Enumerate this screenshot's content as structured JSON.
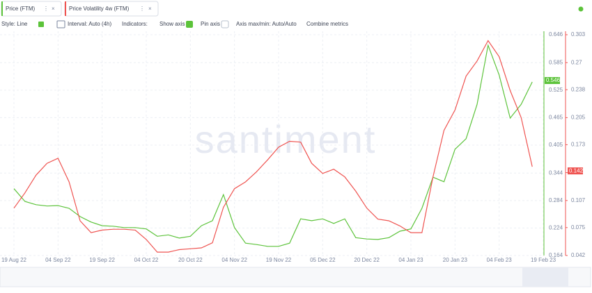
{
  "ui": {
    "tabs": [
      "Price (FTM)",
      "Price Volatility 4w (FTM)"
    ],
    "toolbar": {
      "style": "Style: Line",
      "interval": "Interval: Auto (4h)",
      "indicators": "Indicators:",
      "show_axis": "Show axis",
      "pin_axis": "Pin axis",
      "axis_minmax": "Axis max/min: Auto/Auto",
      "combine": "Combine metrics"
    },
    "watermark": "santiment"
  },
  "chart_data": {
    "type": "line",
    "categories": [
      "19 Aug 22",
      null,
      null,
      null,
      "04 Sep 22",
      null,
      null,
      null,
      "19 Sep 22",
      null,
      null,
      null,
      "04 Oct 22",
      null,
      null,
      null,
      "20 Oct 22",
      null,
      null,
      null,
      "04 Nov 22",
      null,
      null,
      null,
      "19 Nov 22",
      null,
      null,
      null,
      "05 Dec 22",
      null,
      null,
      null,
      "20 Dec 22",
      null,
      null,
      null,
      "04 Jan 23",
      null,
      null,
      null,
      "20 Jan 23",
      null,
      null,
      null,
      "04 Feb 23",
      null,
      null,
      null,
      "19 Feb 23"
    ],
    "series": [
      {
        "name": "Price (FTM)",
        "color": "#5cc33a",
        "axis": "y",
        "last_value": 0.546,
        "values": [
          0.31,
          0.282,
          0.275,
          0.272,
          0.273,
          0.267,
          0.249,
          0.237,
          0.229,
          0.228,
          0.225,
          0.225,
          0.222,
          0.206,
          0.209,
          0.202,
          0.206,
          0.229,
          0.24,
          0.297,
          0.225,
          0.191,
          0.188,
          0.184,
          0.184,
          0.191,
          0.244,
          0.24,
          0.244,
          0.234,
          0.244,
          0.203,
          0.2,
          0.199,
          0.203,
          0.217,
          0.222,
          0.267,
          0.335,
          0.325,
          0.396,
          0.419,
          0.494,
          0.623,
          0.558,
          0.464,
          0.494,
          0.543,
          null
        ]
      },
      {
        "name": "Price Volatility 4w (FTM)",
        "color": "#ef5350",
        "axis": "y2",
        "last_value": 0.142,
        "values": [
          0.098,
          0.116,
          0.137,
          0.151,
          0.157,
          0.129,
          0.083,
          0.069,
          0.072,
          0.073,
          0.073,
          0.072,
          0.061,
          0.046,
          0.046,
          0.049,
          0.05,
          0.051,
          0.057,
          0.099,
          0.121,
          0.129,
          0.141,
          0.155,
          0.17,
          0.177,
          0.176,
          0.151,
          0.139,
          0.144,
          0.135,
          0.118,
          0.098,
          0.085,
          0.083,
          0.077,
          0.069,
          0.069,
          0.135,
          0.19,
          0.214,
          0.254,
          0.272,
          0.296,
          0.277,
          0.237,
          0.205,
          0.147,
          null
        ]
      }
    ],
    "ylim": [
      0.164,
      0.646
    ],
    "yticks": [
      0.164,
      0.224,
      0.284,
      0.344,
      0.405,
      0.465,
      0.525,
      0.585,
      0.646
    ],
    "y2lim": [
      0.042,
      0.303
    ],
    "y2ticks": [
      0.042,
      0.075,
      0.107,
      0.14,
      0.173,
      0.205,
      0.238,
      0.27,
      0.303
    ],
    "grid": true
  }
}
